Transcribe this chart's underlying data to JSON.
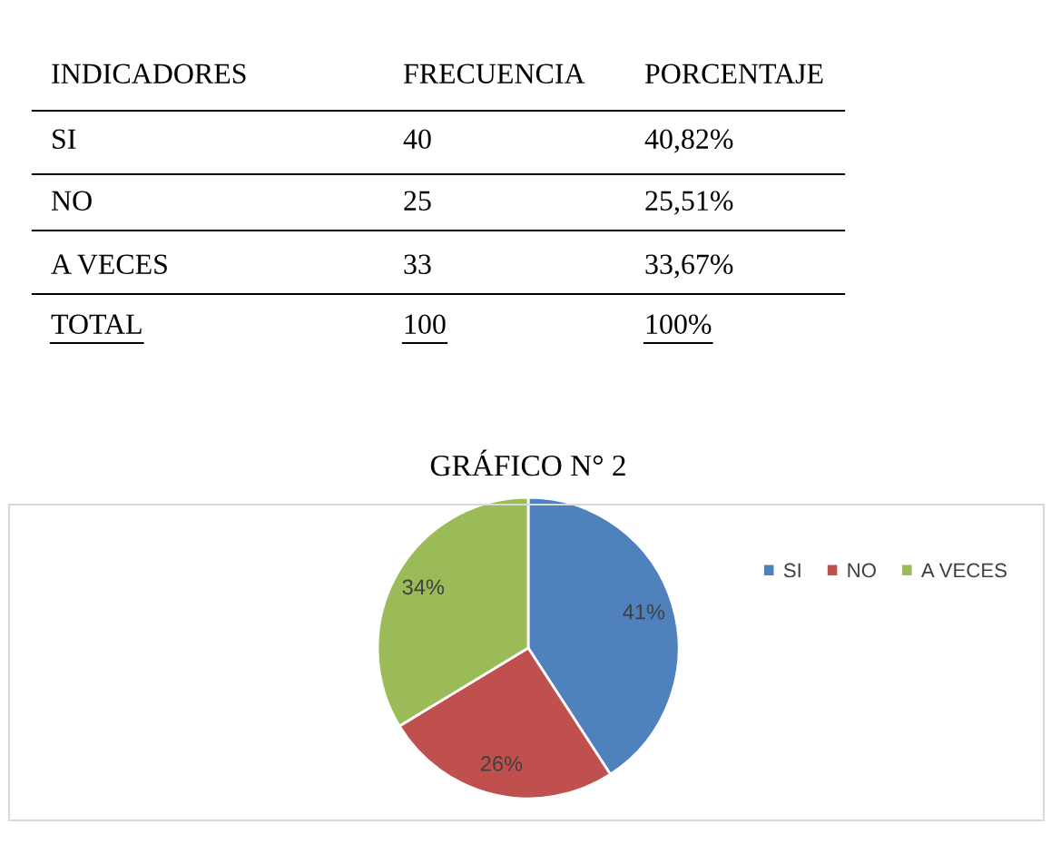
{
  "chart_data": {
    "type": "pie",
    "title": "GRÁFICO N° 2",
    "categories": [
      "SI",
      "NO",
      "A VECES"
    ],
    "values": [
      40.82,
      25.51,
      33.67
    ],
    "colors": [
      "#4f81bd",
      "#c0504d",
      "#9bbb59"
    ],
    "value_labels": [
      "41%",
      "26%",
      "34%"
    ],
    "legend": "top right",
    "annotations": [
      "INDICADORES",
      "FRECUENCIA",
      "PORCENTAJE",
      "SI",
      "40",
      "40,82%",
      "NO",
      "25",
      "25,51%",
      "A VECES",
      "33",
      "33,67%",
      "TOTAL",
      "100",
      "100%"
    ]
  }
}
